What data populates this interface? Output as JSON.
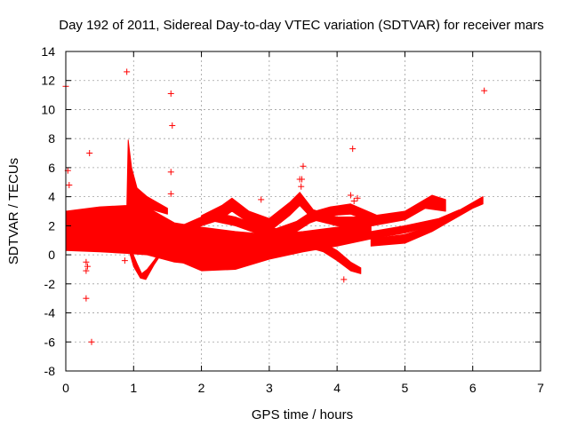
{
  "chart_data": {
    "type": "scatter",
    "title": "Day 192 of 2011, Sidereal Day-to-day VTEC variation (SDTVAR) for receiver mars",
    "xlabel": "GPS time / hours",
    "ylabel": "SDTVAR / TECUs",
    "xlim": [
      0,
      7
    ],
    "ylim": [
      -8,
      14
    ],
    "xticks": [
      "0",
      "1",
      "2",
      "3",
      "4",
      "5",
      "6",
      "7"
    ],
    "yticks": [
      "-8",
      "-6",
      "-4",
      "-2",
      "0",
      "2",
      "4",
      "6",
      "8",
      "10",
      "12",
      "14"
    ],
    "grid": true,
    "color": "#ff0000",
    "marker": "+",
    "dense_bands": [
      {
        "name": "main-cluster",
        "upper": [
          [
            0.0,
            3.0
          ],
          [
            0.5,
            3.3
          ],
          [
            0.9,
            3.4
          ],
          [
            1.1,
            3.5
          ],
          [
            1.3,
            3.0
          ],
          [
            1.6,
            2.2
          ],
          [
            2.0,
            1.9
          ],
          [
            2.5,
            1.6
          ],
          [
            3.0,
            1.4
          ],
          [
            3.5,
            1.6
          ],
          [
            4.0,
            1.9
          ],
          [
            4.5,
            2.3
          ]
        ],
        "lower": [
          [
            4.5,
            1.6
          ],
          [
            4.0,
            0.9
          ],
          [
            3.5,
            0.5
          ],
          [
            3.0,
            0.1
          ],
          [
            2.5,
            -0.3
          ],
          [
            2.0,
            -0.7
          ],
          [
            1.6,
            -0.5
          ],
          [
            1.2,
            0.0
          ],
          [
            0.9,
            0.1
          ],
          [
            0.5,
            0.2
          ],
          [
            0.0,
            0.3
          ]
        ]
      },
      {
        "name": "spike-near-0.9h",
        "upper": [
          [
            0.9,
            3.4
          ],
          [
            0.92,
            7.9
          ],
          [
            0.97,
            6.0
          ],
          [
            1.05,
            4.6
          ],
          [
            1.2,
            4.0
          ],
          [
            1.35,
            3.6
          ],
          [
            1.5,
            3.2
          ]
        ],
        "lower": [
          [
            1.5,
            2.8
          ],
          [
            1.2,
            3.2
          ],
          [
            1.0,
            3.4
          ],
          [
            0.9,
            3.2
          ]
        ]
      },
      {
        "name": "dip-near-1.1h",
        "upper": [
          [
            0.95,
            0.5
          ],
          [
            1.05,
            -0.6
          ],
          [
            1.12,
            -1.3
          ],
          [
            1.2,
            -1.0
          ],
          [
            1.3,
            -0.4
          ],
          [
            1.4,
            0.3
          ]
        ],
        "lower": [
          [
            1.4,
            0.0
          ],
          [
            1.3,
            -0.7
          ],
          [
            1.18,
            -1.7
          ],
          [
            1.1,
            -1.6
          ],
          [
            1.0,
            -0.8
          ],
          [
            0.95,
            0.0
          ]
        ]
      },
      {
        "name": "low-descending",
        "upper": [
          [
            1.6,
            0.1
          ],
          [
            2.0,
            -0.3
          ],
          [
            2.5,
            -0.3
          ],
          [
            3.0,
            0.4
          ],
          [
            3.5,
            0.8
          ],
          [
            4.0,
            1.2
          ],
          [
            4.5,
            1.6
          ],
          [
            5.0,
            2.0
          ],
          [
            5.5,
            2.5
          ],
          [
            5.8,
            3.1
          ]
        ],
        "lower": [
          [
            5.8,
            2.7
          ],
          [
            5.5,
            2.1
          ],
          [
            5.0,
            1.5
          ],
          [
            4.5,
            1.1
          ],
          [
            4.0,
            0.6
          ],
          [
            3.5,
            0.2
          ],
          [
            3.0,
            -0.3
          ],
          [
            2.5,
            -1.0
          ],
          [
            2.0,
            -1.1
          ],
          [
            1.6,
            -0.3
          ]
        ]
      },
      {
        "name": "upper-arc-1",
        "upper": [
          [
            2.0,
            2.7
          ],
          [
            2.3,
            3.4
          ],
          [
            2.45,
            3.9
          ],
          [
            2.7,
            3.0
          ],
          [
            3.0,
            2.5
          ],
          [
            3.3,
            3.6
          ],
          [
            3.45,
            4.3
          ],
          [
            3.65,
            3.1
          ],
          [
            4.0,
            2.6
          ],
          [
            4.4,
            2.6
          ],
          [
            5.0,
            3.0
          ],
          [
            5.4,
            4.1
          ],
          [
            5.6,
            3.8
          ]
        ],
        "lower": [
          [
            5.6,
            3.0
          ],
          [
            5.3,
            3.2
          ],
          [
            5.0,
            2.4
          ],
          [
            4.4,
            1.9
          ],
          [
            4.0,
            2.0
          ],
          [
            3.65,
            2.4
          ],
          [
            3.45,
            3.4
          ],
          [
            3.3,
            2.7
          ],
          [
            3.0,
            1.6
          ],
          [
            2.7,
            2.2
          ],
          [
            2.45,
            3.0
          ],
          [
            2.3,
            2.5
          ],
          [
            2.0,
            2.2
          ]
        ]
      },
      {
        "name": "upper-arc-2",
        "upper": [
          [
            1.7,
            2.0
          ],
          [
            2.0,
            2.6
          ],
          [
            2.2,
            2.9
          ],
          [
            2.5,
            2.6
          ],
          [
            2.8,
            2.1
          ],
          [
            3.1,
            1.8
          ],
          [
            3.4,
            2.3
          ],
          [
            3.6,
            2.9
          ],
          [
            3.9,
            3.3
          ],
          [
            4.2,
            3.5
          ],
          [
            4.6,
            2.7
          ]
        ],
        "lower": [
          [
            4.6,
            2.1
          ],
          [
            4.2,
            2.8
          ],
          [
            3.9,
            2.7
          ],
          [
            3.6,
            2.2
          ],
          [
            3.4,
            1.6
          ],
          [
            3.1,
            1.2
          ],
          [
            2.8,
            1.5
          ],
          [
            2.5,
            2.0
          ],
          [
            2.2,
            2.3
          ],
          [
            2.0,
            2.0
          ],
          [
            1.7,
            1.5
          ]
        ]
      },
      {
        "name": "right-ramp",
        "upper": [
          [
            4.5,
            1.1
          ],
          [
            5.0,
            1.4
          ],
          [
            5.4,
            2.0
          ],
          [
            5.7,
            2.8
          ],
          [
            6.0,
            3.6
          ],
          [
            6.15,
            4.0
          ]
        ],
        "lower": [
          [
            6.15,
            3.5
          ],
          [
            6.0,
            3.2
          ],
          [
            5.7,
            2.4
          ],
          [
            5.4,
            1.6
          ],
          [
            5.0,
            0.8
          ],
          [
            4.5,
            0.6
          ]
        ]
      },
      {
        "name": "falling-tail",
        "upper": [
          [
            3.5,
            1.1
          ],
          [
            3.8,
            0.8
          ],
          [
            4.0,
            0.3
          ],
          [
            4.2,
            -0.5
          ],
          [
            4.35,
            -0.9
          ]
        ],
        "lower": [
          [
            4.35,
            -1.3
          ],
          [
            4.2,
            -1.1
          ],
          [
            4.0,
            -0.4
          ],
          [
            3.8,
            0.2
          ],
          [
            3.5,
            0.6
          ]
        ]
      }
    ],
    "outliers": [
      [
        0.0,
        11.6
      ],
      [
        0.03,
        5.8
      ],
      [
        0.05,
        4.8
      ],
      [
        0.3,
        -0.5
      ],
      [
        0.32,
        -0.8
      ],
      [
        0.3,
        -1.1
      ],
      [
        0.3,
        -3.0
      ],
      [
        0.35,
        7.0
      ],
      [
        0.38,
        -6.0
      ],
      [
        0.87,
        -0.4
      ],
      [
        0.9,
        12.6
      ],
      [
        1.55,
        11.1
      ],
      [
        1.57,
        8.9
      ],
      [
        1.55,
        5.7
      ],
      [
        1.55,
        4.2
      ],
      [
        2.88,
        3.8
      ],
      [
        3.45,
        5.2
      ],
      [
        3.48,
        5.2
      ],
      [
        3.5,
        6.1
      ],
      [
        3.47,
        4.7
      ],
      [
        4.1,
        -1.7
      ],
      [
        4.2,
        4.1
      ],
      [
        4.23,
        7.3
      ],
      [
        4.25,
        3.7
      ],
      [
        4.3,
        3.9
      ],
      [
        6.17,
        11.3
      ]
    ]
  }
}
